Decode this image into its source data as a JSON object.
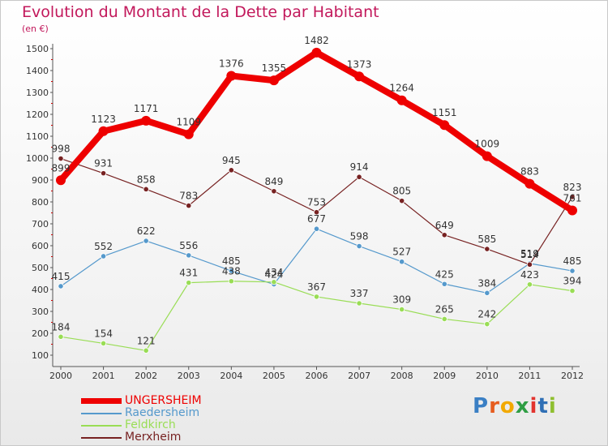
{
  "title": "Evolution du Montant de la Dette par Habitant",
  "unit_label": "(en €)",
  "logo_text": "Proxiti",
  "chart_data": {
    "type": "line",
    "title": "Evolution du Montant de la Dette par Habitant",
    "ylabel": "(en €)",
    "xlabel": "",
    "x": [
      "2000",
      "2001",
      "2002",
      "2003",
      "2004",
      "2005",
      "2006",
      "2007",
      "2008",
      "2009",
      "2010",
      "2011",
      "2012"
    ],
    "ylim": [
      100,
      1500
    ],
    "yticks": [
      100,
      200,
      300,
      400,
      500,
      600,
      700,
      800,
      900,
      1000,
      1100,
      1200,
      1300,
      1400,
      1500
    ],
    "grid": false,
    "legend_position": "bottom-left",
    "series": [
      {
        "name": "UNGERSHEIM",
        "color": "#ee0000",
        "values": [
          899,
          1123,
          1171,
          1109,
          1376,
          1355,
          1482,
          1373,
          1264,
          1151,
          1009,
          883,
          761
        ]
      },
      {
        "name": "Raedersheim",
        "color": "#5599cc",
        "values": [
          415,
          552,
          622,
          556,
          485,
          424,
          677,
          598,
          527,
          425,
          384,
          519,
          485
        ]
      },
      {
        "name": "Feldkirch",
        "color": "#99dd55",
        "values": [
          184,
          154,
          121,
          431,
          438,
          434,
          367,
          337,
          309,
          265,
          242,
          423,
          394
        ]
      },
      {
        "name": "Merxheim",
        "color": "#772222",
        "values": [
          998,
          931,
          858,
          783,
          945,
          849,
          753,
          914,
          805,
          649,
          585,
          514,
          823
        ]
      }
    ]
  }
}
